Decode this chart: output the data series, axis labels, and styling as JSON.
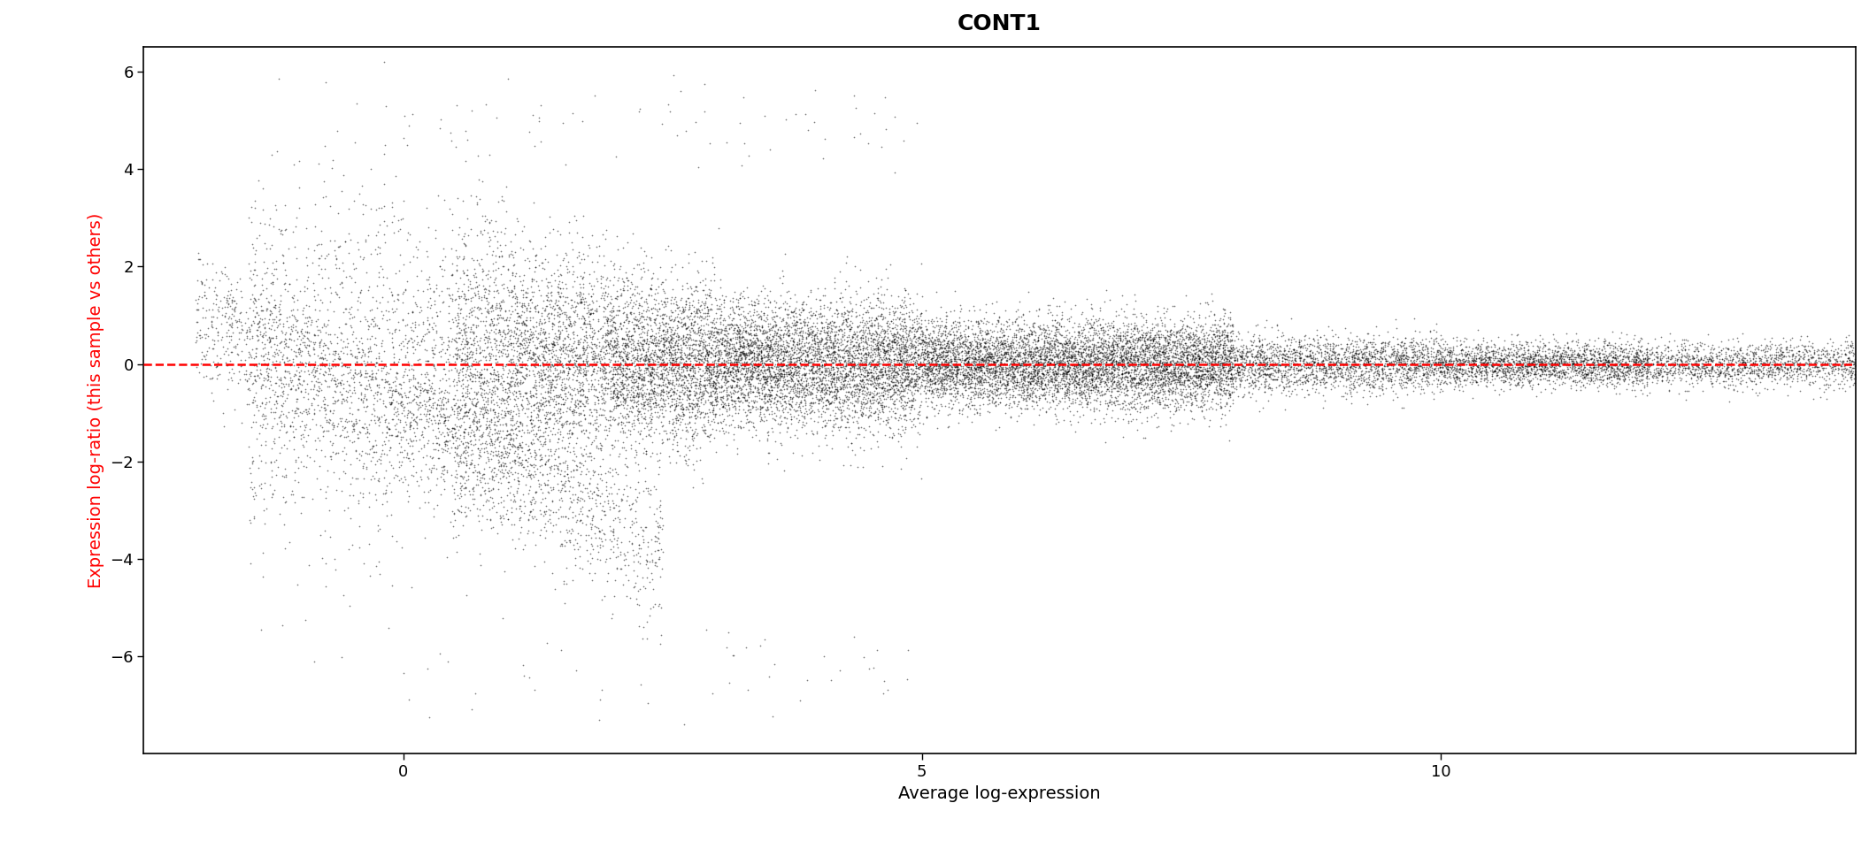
{
  "title": "CONT1",
  "xlabel": "Average log-expression",
  "ylabel": "Expression log-ratio (this sample vs others)",
  "xlim": [
    -2.5,
    14.0
  ],
  "ylim": [
    -8.0,
    6.5
  ],
  "yticks": [
    -6,
    -4,
    -2,
    0,
    2,
    4,
    6
  ],
  "xticks": [
    0,
    5,
    10
  ],
  "hline_y": 0,
  "hline_color": "#FF0000",
  "point_color": "#000000",
  "point_size": 1.5,
  "point_alpha": 0.5,
  "background_color": "#FFFFFF",
  "title_fontsize": 18,
  "label_fontsize": 14,
  "tick_fontsize": 13,
  "ylabel_color": "#FF0000",
  "n_points": 25000,
  "seed": 42
}
